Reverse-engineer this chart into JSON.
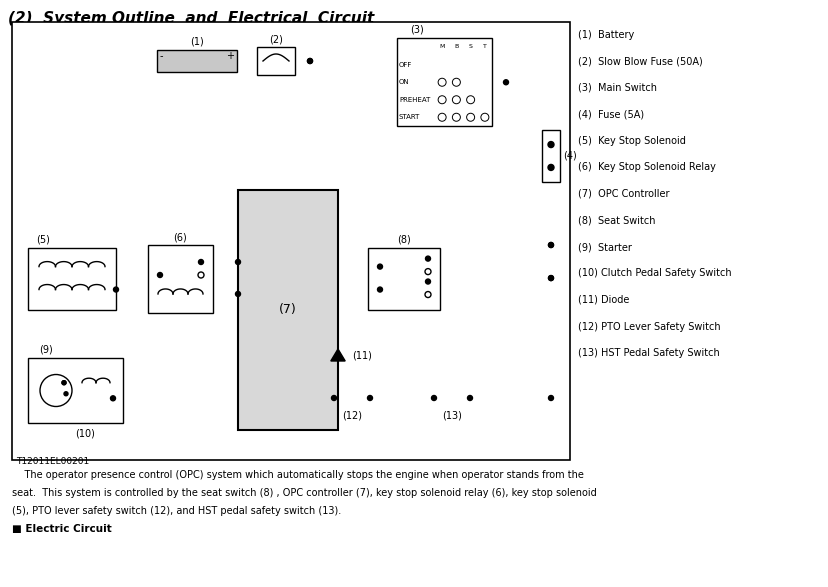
{
  "title": "(2)  System Outline  and  Electrical  Circuit",
  "legend": [
    "(1)  Battery",
    "(2)  Slow Blow Fuse (50A)",
    "(3)  Main Switch",
    "(4)  Fuse (5A)",
    "(5)  Key Stop Solenoid",
    "(6)  Key Stop Solenoid Relay",
    "(7)  OPC Controller",
    "(8)  Seat Switch",
    "(9)  Starter",
    "(10) Clutch Pedal Safety Switch",
    "(11) Diode",
    "(12) PTO Lever Safety Switch",
    "(13) HST Pedal Safety Switch"
  ],
  "caption1": "    The operator presence control (OPC) system which automatically stops the engine when operator stands from the",
  "caption2": "seat.  This system is controlled by the seat switch (8) , OPC controller (7), key stop solenoid relay (6), key stop solenoid",
  "caption3": "(5), PTO lever safety switch (12), and HST pedal safety switch (13).",
  "bottom_label": "■ Electric Circuit",
  "diagram_id": "T12011EL00201"
}
